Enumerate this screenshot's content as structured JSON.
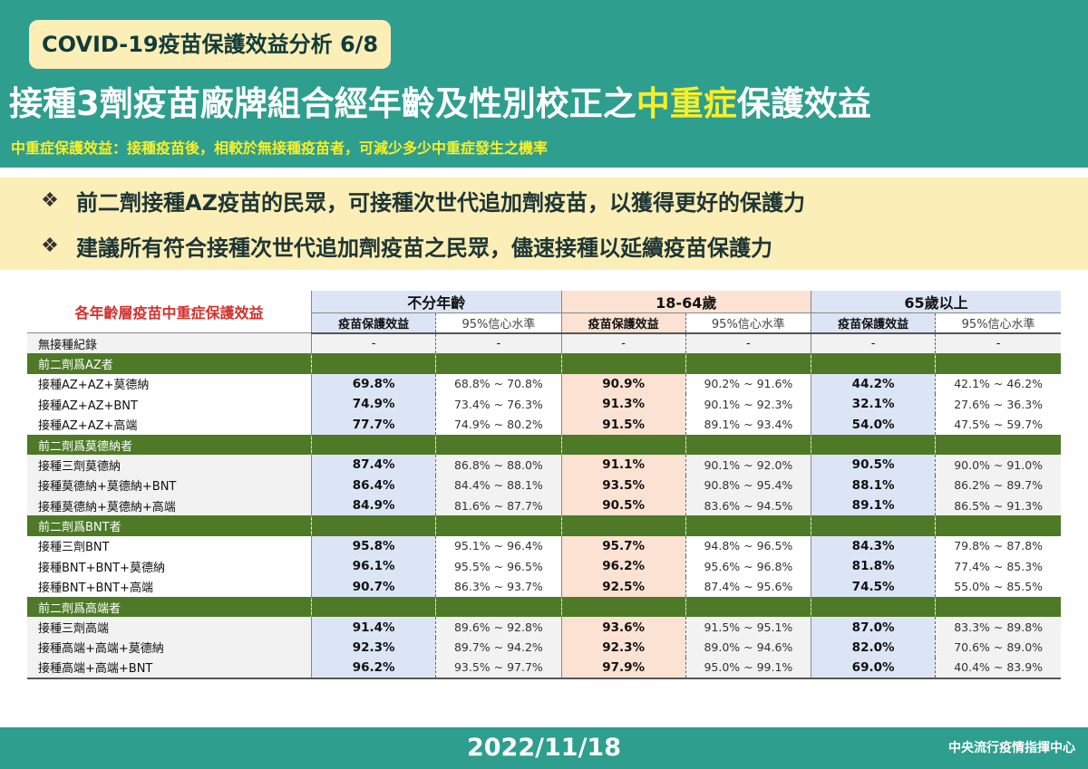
{
  "header": {
    "tag": "COVID-19疫苗保護效益分析 6/8",
    "title_part1": "接種3劑疫苗廠牌組合經年齡及性別校正之",
    "title_highlight": "中重症",
    "title_part2": "保護效益",
    "definition": "中重症保護效益：接種疫苗後，相較於無接種疫苗者，可減少多少中重症發生之機率"
  },
  "notes": [
    {
      "icon": "❖",
      "text": "前二劑接種AZ疫苗的民眾，可接種次世代追加劑疫苗，以獲得更好的保護力"
    },
    {
      "icon": "❖",
      "text": "建議所有符合接種次世代追加劑疫苗之民眾，儘速接種以延續疫苗保護力"
    }
  ],
  "table": {
    "title": "各年齡層疫苗中重症保護效益",
    "groups": [
      "不分年齡",
      "18-64歲",
      "65歲以上"
    ],
    "subheaders": {
      "eff": "疫苗保護效益",
      "ci": "95%信心水準"
    },
    "no_record": {
      "label": "無接種紀錄",
      "values": [
        "-",
        "-",
        "-",
        "-",
        "-",
        "-"
      ]
    },
    "sections": [
      {
        "title": "前二劑爲AZ者",
        "rows": [
          {
            "label": "接種AZ+AZ+莫德納",
            "values": [
              "69.8%",
              "68.8% ~ 70.8%",
              "90.9%",
              "90.2% ~ 91.6%",
              "44.2%",
              "42.1% ~ 46.2%"
            ]
          },
          {
            "label": "接種AZ+AZ+BNT",
            "values": [
              "74.9%",
              "73.4% ~ 76.3%",
              "91.3%",
              "90.1% ~ 92.3%",
              "32.1%",
              "27.6% ~ 36.3%"
            ]
          },
          {
            "label": "接種AZ+AZ+高端",
            "values": [
              "77.7%",
              "74.9% ~ 80.2%",
              "91.5%",
              "89.1% ~ 93.4%",
              "54.0%",
              "47.5% ~ 59.7%"
            ]
          }
        ]
      },
      {
        "title": "前二劑爲莫德納者",
        "rows": [
          {
            "label": "接種三劑莫德納",
            "values": [
              "87.4%",
              "86.8% ~ 88.0%",
              "91.1%",
              "90.1% ~ 92.0%",
              "90.5%",
              "90.0% ~ 91.0%"
            ]
          },
          {
            "label": "接種莫德納+莫德納+BNT",
            "values": [
              "86.4%",
              "84.4% ~ 88.1%",
              "93.5%",
              "90.8% ~ 95.4%",
              "88.1%",
              "86.2% ~ 89.7%"
            ]
          },
          {
            "label": "接種莫德納+莫德納+高端",
            "values": [
              "84.9%",
              "81.6% ~ 87.7%",
              "90.5%",
              "83.6% ~ 94.5%",
              "89.1%",
              "86.5% ~ 91.3%"
            ]
          }
        ]
      },
      {
        "title": "前二劑爲BNT者",
        "rows": [
          {
            "label": "接種三劑BNT",
            "values": [
              "95.8%",
              "95.1% ~ 96.4%",
              "95.7%",
              "94.8% ~ 96.5%",
              "84.3%",
              "79.8% ~ 87.8%"
            ]
          },
          {
            "label": "接種BNT+BNT+莫德納",
            "values": [
              "96.1%",
              "95.5% ~ 96.5%",
              "96.2%",
              "95.6% ~ 96.8%",
              "81.8%",
              "77.4% ~ 85.3%"
            ]
          },
          {
            "label": "接種BNT+BNT+高端",
            "values": [
              "90.7%",
              "86.3% ~ 93.7%",
              "92.5%",
              "87.4% ~ 95.6%",
              "74.5%",
              "55.0% ~ 85.5%"
            ]
          }
        ]
      },
      {
        "title": "前二劑爲高端者",
        "rows": [
          {
            "label": "接種三劑高端",
            "values": [
              "91.4%",
              "89.6% ~ 92.8%",
              "93.6%",
              "91.5% ~ 95.1%",
              "87.0%",
              "83.3% ~ 89.8%"
            ]
          },
          {
            "label": "接種高端+高端+莫德納",
            "values": [
              "92.3%",
              "89.7% ~ 94.2%",
              "92.3%",
              "89.0% ~ 94.6%",
              "82.0%",
              "70.6% ~ 89.0%"
            ]
          },
          {
            "label": "接種高端+高端+BNT",
            "values": [
              "96.2%",
              "93.5% ~ 97.7%",
              "97.9%",
              "95.0% ~ 99.1%",
              "69.0%",
              "40.4% ~ 83.9%"
            ]
          }
        ]
      }
    ]
  },
  "footer": {
    "date": "2022/11/18",
    "org": "中央流行疫情指揮中心"
  },
  "colors": {
    "teal": "#2e9e8f",
    "cream": "#fbeeb6",
    "highlight_yellow": "#f7ef2a",
    "section_green": "#4e7a27",
    "title_red": "#d0312d",
    "blue_band": "#dce5f5",
    "pink_band": "#fbe2d3"
  }
}
